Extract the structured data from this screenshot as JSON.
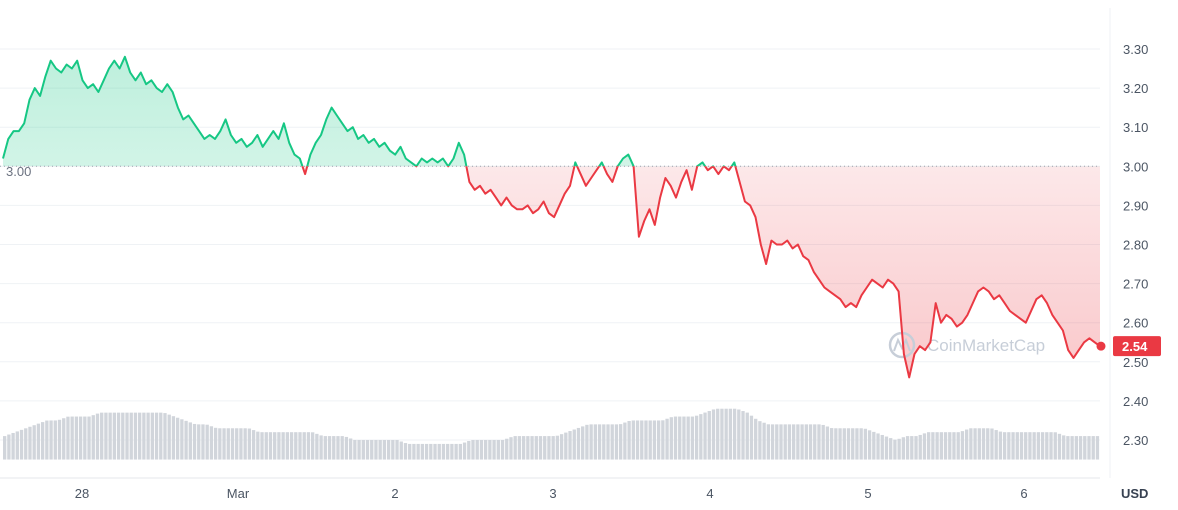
{
  "chart_data": {
    "type": "line",
    "x_ticks": [
      "28",
      "Mar",
      "2",
      "3",
      "4",
      "5",
      "6"
    ],
    "y_ticks": [
      "3.30",
      "3.20",
      "3.10",
      "3.00",
      "2.90",
      "2.80",
      "2.70",
      "2.60",
      "2.50",
      "2.40",
      "2.30"
    ],
    "ylim": [
      2.3,
      3.3
    ],
    "baseline": 3.0,
    "baseline_label": "3.00",
    "current_value": 2.54,
    "current_label": "2.54",
    "currency": "USD",
    "watermark": "CoinMarketCap",
    "colors": {
      "up": "#16c784",
      "down": "#ea3943",
      "grid": "#eff2f5",
      "axis_text": "#4b5563",
      "volume": "#d1d5db"
    },
    "price_series": [
      3.02,
      3.07,
      3.09,
      3.09,
      3.11,
      3.17,
      3.2,
      3.18,
      3.23,
      3.27,
      3.25,
      3.24,
      3.26,
      3.25,
      3.27,
      3.22,
      3.2,
      3.21,
      3.19,
      3.22,
      3.25,
      3.27,
      3.25,
      3.28,
      3.24,
      3.22,
      3.24,
      3.21,
      3.22,
      3.2,
      3.19,
      3.21,
      3.19,
      3.15,
      3.12,
      3.13,
      3.11,
      3.09,
      3.07,
      3.08,
      3.07,
      3.09,
      3.12,
      3.08,
      3.06,
      3.07,
      3.05,
      3.06,
      3.08,
      3.05,
      3.07,
      3.09,
      3.07,
      3.11,
      3.06,
      3.03,
      3.02,
      2.98,
      3.03,
      3.06,
      3.08,
      3.12,
      3.15,
      3.13,
      3.11,
      3.09,
      3.1,
      3.07,
      3.08,
      3.06,
      3.07,
      3.05,
      3.06,
      3.04,
      3.03,
      3.05,
      3.02,
      3.01,
      3.0,
      3.02,
      3.01,
      3.02,
      3.01,
      3.02,
      3.0,
      3.02,
      3.06,
      3.03,
      2.96,
      2.94,
      2.95,
      2.93,
      2.94,
      2.92,
      2.9,
      2.92,
      2.9,
      2.89,
      2.89,
      2.9,
      2.88,
      2.89,
      2.91,
      2.88,
      2.87,
      2.9,
      2.93,
      2.95,
      3.01,
      2.98,
      2.95,
      2.97,
      2.99,
      3.01,
      2.98,
      2.96,
      3.0,
      3.02,
      3.03,
      3.0,
      2.82,
      2.86,
      2.89,
      2.85,
      2.92,
      2.97,
      2.95,
      2.92,
      2.96,
      2.99,
      2.94,
      3.0,
      3.01,
      2.99,
      3.0,
      2.98,
      3.0,
      2.99,
      3.01,
      2.96,
      2.91,
      2.9,
      2.87,
      2.8,
      2.75,
      2.81,
      2.8,
      2.8,
      2.81,
      2.79,
      2.8,
      2.77,
      2.76,
      2.73,
      2.71,
      2.69,
      2.68,
      2.67,
      2.66,
      2.64,
      2.65,
      2.64,
      2.67,
      2.69,
      2.71,
      2.7,
      2.69,
      2.71,
      2.7,
      2.68,
      2.52,
      2.46,
      2.52,
      2.54,
      2.53,
      2.55,
      2.65,
      2.6,
      2.62,
      2.61,
      2.59,
      2.6,
      2.62,
      2.65,
      2.68,
      2.69,
      2.68,
      2.66,
      2.67,
      2.65,
      2.63,
      2.62,
      2.61,
      2.6,
      2.63,
      2.66,
      2.67,
      2.65,
      2.62,
      2.6,
      2.58,
      2.53,
      2.51,
      2.53,
      2.55,
      2.56,
      2.55,
      2.54
    ],
    "volume_series": [
      2.31,
      2.32,
      2.33,
      2.34,
      2.35,
      2.35,
      2.36,
      2.36,
      2.36,
      2.37,
      2.37,
      2.37,
      2.37,
      2.37,
      2.37,
      2.37,
      2.36,
      2.35,
      2.34,
      2.34,
      2.33,
      2.33,
      2.33,
      2.33,
      2.32,
      2.32,
      2.32,
      2.32,
      2.32,
      2.32,
      2.31,
      2.31,
      2.31,
      2.3,
      2.3,
      2.3,
      2.3,
      2.3,
      2.29,
      2.29,
      2.29,
      2.29,
      2.29,
      2.29,
      2.3,
      2.3,
      2.3,
      2.3,
      2.31,
      2.31,
      2.31,
      2.31,
      2.31,
      2.32,
      2.33,
      2.34,
      2.34,
      2.34,
      2.34,
      2.35,
      2.35,
      2.35,
      2.35,
      2.36,
      2.36,
      2.36,
      2.37,
      2.38,
      2.38,
      2.38,
      2.37,
      2.35,
      2.34,
      2.34,
      2.34,
      2.34,
      2.34,
      2.34,
      2.33,
      2.33,
      2.33,
      2.33,
      2.32,
      2.31,
      2.3,
      2.31,
      2.31,
      2.32,
      2.32,
      2.32,
      2.32,
      2.33,
      2.33,
      2.33,
      2.32,
      2.32,
      2.32,
      2.32,
      2.32,
      2.32,
      2.31,
      2.31,
      2.31,
      2.31
    ]
  }
}
